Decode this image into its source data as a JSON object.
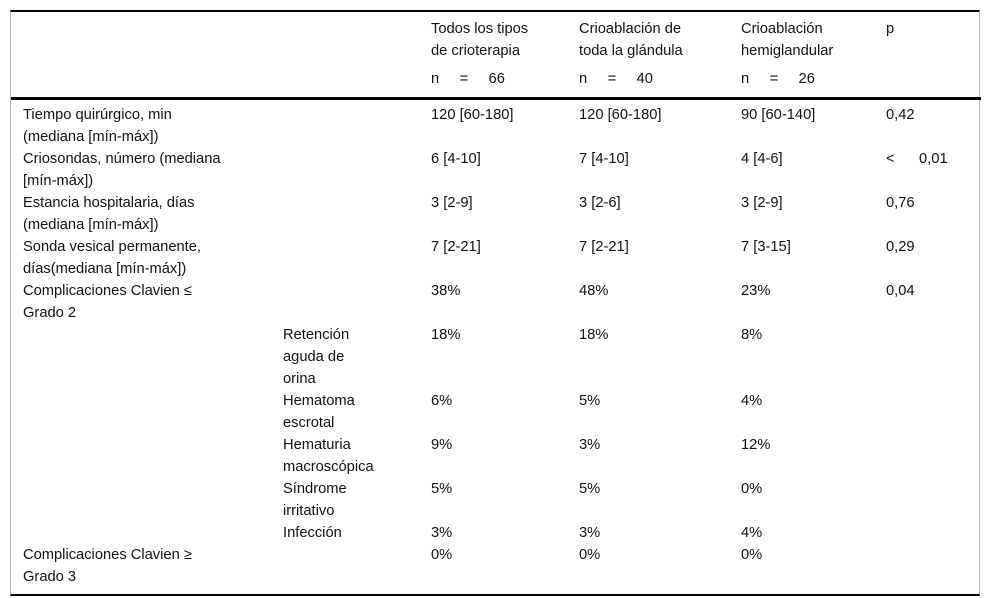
{
  "colors": {
    "rule_dark": "#000000",
    "rule_light": "#b5b5b5",
    "text": "#111111",
    "background": "#ffffff"
  },
  "header": {
    "groups": [
      {
        "title": "Todos los tipos\nde crioterapia",
        "n_line": "n     =     66"
      },
      {
        "title": "Crioablación de\ntoda la glándula",
        "n_line": "n     =     40"
      },
      {
        "title": "Crioablación\nhemiglandular",
        "n_line": "n     =     26"
      }
    ],
    "p_label": "p"
  },
  "rows": [
    {
      "label": "Tiempo quirúrgico, min\n(mediana [mín-máx])",
      "sublabel": "",
      "all_types": "120 [60-180]",
      "whole_gland": "120 [60-180]",
      "hemigland": "90 [60-140]",
      "p": "0,42"
    },
    {
      "label": "Criosondas, número (mediana\n[mín-máx])",
      "sublabel": "",
      "all_types": "6 [4-10]",
      "whole_gland": "7 [4-10]",
      "hemigland": "4 [4-6]",
      "p": "<      0,01"
    },
    {
      "label": "Estancia hospitalaria, días\n(mediana [mín-máx])",
      "sublabel": "",
      "all_types": "3 [2-9]",
      "whole_gland": "3 [2-6]",
      "hemigland": "3 [2-9]",
      "p": "0,76"
    },
    {
      "label": "Sonda vesical permanente,\ndías(mediana [mín-máx])",
      "sublabel": "",
      "all_types": "7 [2-21]",
      "whole_gland": "7 [2-21]",
      "hemigland": "7 [3-15]",
      "p": "0,29"
    },
    {
      "label": "Complicaciones Clavien ≤\nGrado 2",
      "sublabel": "",
      "all_types": "38%",
      "whole_gland": "48%",
      "hemigland": "23%",
      "p": "0,04"
    },
    {
      "label": "",
      "sublabel": "Retención\naguda de\norina",
      "all_types": "18%",
      "whole_gland": "18%",
      "hemigland": "8%",
      "p": ""
    },
    {
      "label": "",
      "sublabel": "Hematoma\nescrotal",
      "all_types": "6%",
      "whole_gland": "5%",
      "hemigland": "4%",
      "p": ""
    },
    {
      "label": "",
      "sublabel": "Hematuria\nmacroscópica",
      "all_types": "9%",
      "whole_gland": "3%",
      "hemigland": "12%",
      "p": ""
    },
    {
      "label": "",
      "sublabel": "Síndrome\nirritativo",
      "all_types": "5%",
      "whole_gland": "5%",
      "hemigland": "0%",
      "p": ""
    },
    {
      "label": "",
      "sublabel": "Infección",
      "all_types": "3%",
      "whole_gland": "3%",
      "hemigland": "4%",
      "p": ""
    },
    {
      "label": "Complicaciones Clavien ≥\nGrado 3",
      "sublabel": "",
      "all_types": "0%",
      "whole_gland": "0%",
      "hemigland": "0%",
      "p": ""
    }
  ]
}
